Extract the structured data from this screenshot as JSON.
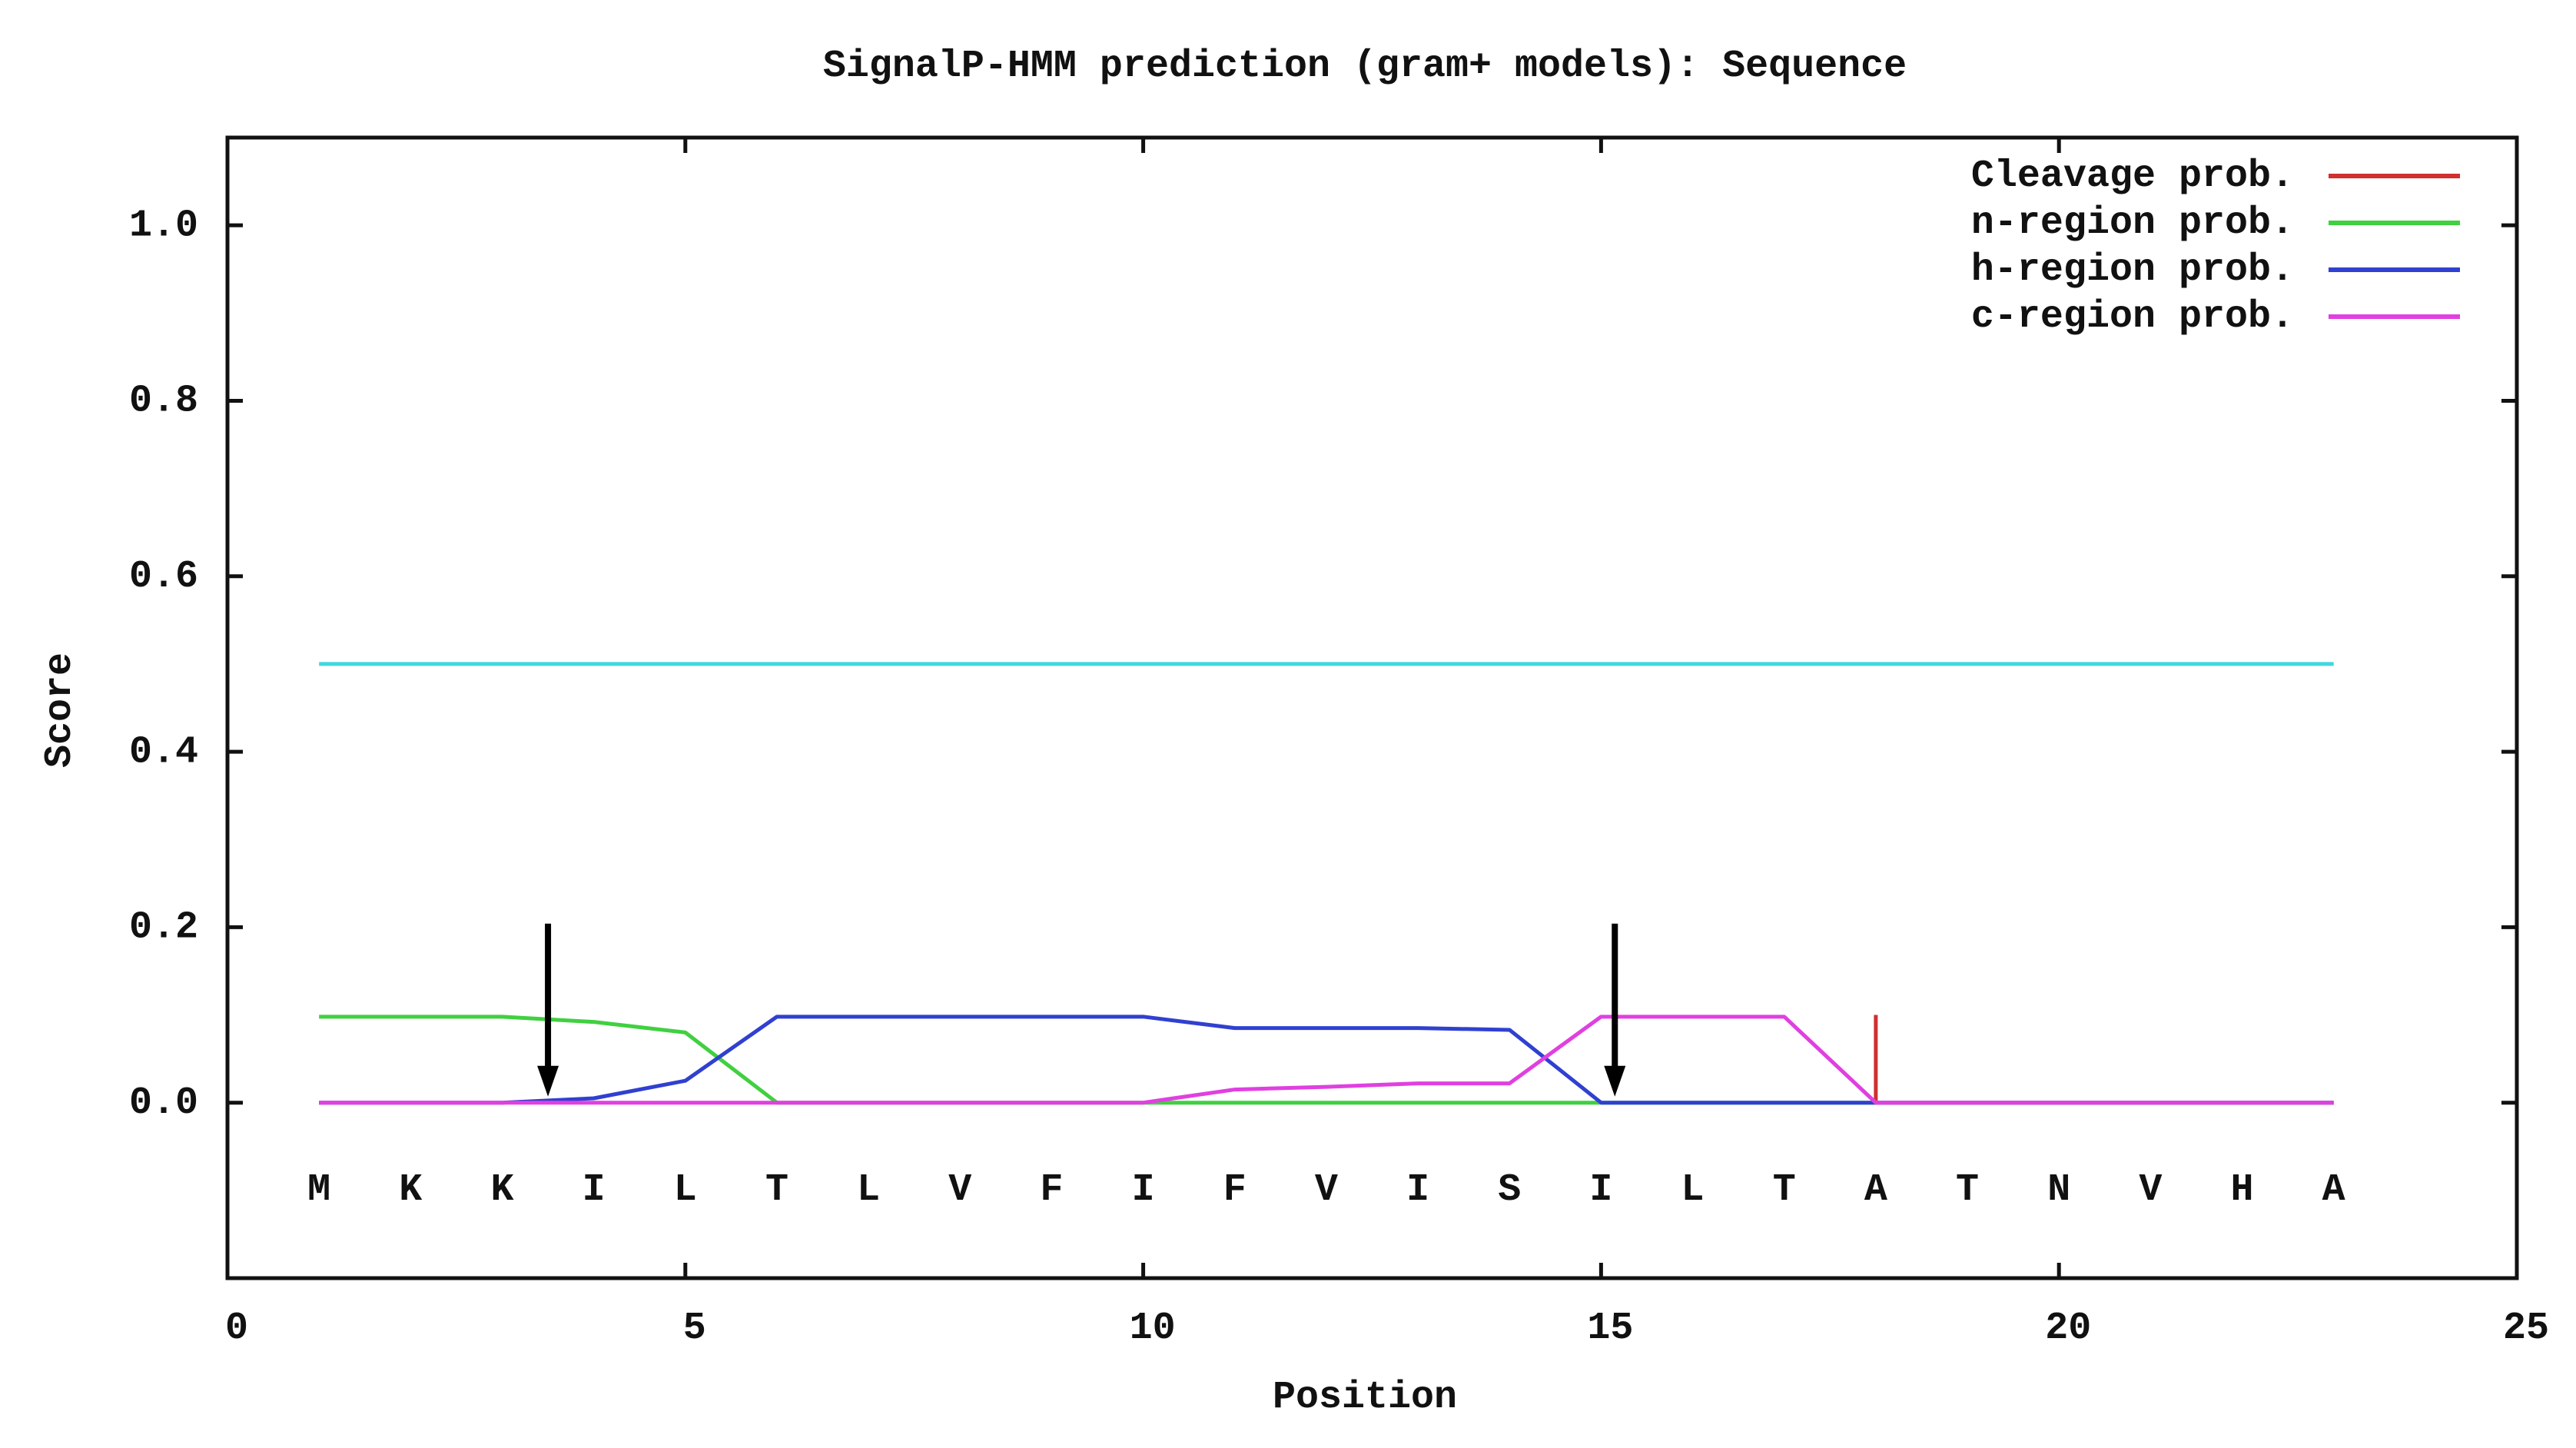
{
  "chart_data": {
    "type": "line",
    "title": "SignalP-HMM prediction (gram+ models): Sequence",
    "x_label": "Position",
    "y_label": "Score",
    "xlim": [
      0,
      25
    ],
    "xticks": [
      0,
      5,
      10,
      15,
      20,
      25
    ],
    "ylim": [
      -0.2,
      1.1
    ],
    "yticks": [
      {
        "value": 0,
        "label": "0.0"
      },
      0.2,
      0.4,
      0.6,
      0.8,
      {
        "value": 1,
        "label": "1.0"
      }
    ],
    "x": [
      1,
      2,
      3,
      4,
      5,
      6,
      7,
      8,
      9,
      10,
      11,
      12,
      13,
      14,
      15,
      16,
      17,
      18,
      19,
      20,
      21,
      22,
      23
    ],
    "sequence": [
      "M",
      "K",
      "K",
      "I",
      "L",
      "T",
      "L",
      "V",
      "F",
      "I",
      "F",
      "V",
      "I",
      "S",
      "I",
      "L",
      "T",
      "A",
      "T",
      "N",
      "V",
      "H",
      "A"
    ],
    "legend": "upper right",
    "series": [
      {
        "name": "Cleavage prob.",
        "color": "#d03030",
        "style": "impulses",
        "values": [
          0,
          0,
          0,
          0,
          0,
          0,
          0,
          0,
          0,
          0,
          0,
          0,
          0,
          0,
          0,
          0,
          0,
          0.1,
          0,
          0,
          0,
          0,
          0
        ]
      },
      {
        "name": "n-region prob.",
        "color": "#40d040",
        "style": "line",
        "values": [
          0.098,
          0.098,
          0.098,
          0.092,
          0.08,
          0,
          0,
          0,
          0,
          0,
          0,
          0,
          0,
          0,
          0,
          0,
          0,
          0,
          0,
          0,
          0,
          0,
          0
        ]
      },
      {
        "name": "h-region prob.",
        "color": "#3040d0",
        "style": "line",
        "values": [
          0,
          0,
          0,
          0.005,
          0.025,
          0.098,
          0.098,
          0.098,
          0.098,
          0.098,
          0.085,
          0.085,
          0.085,
          0.083,
          0,
          0,
          0,
          0,
          0,
          0,
          0,
          0,
          0
        ]
      },
      {
        "name": "c-region prob.",
        "color": "#e040e0",
        "style": "line",
        "values": [
          0,
          0,
          0,
          0,
          0,
          0,
          0,
          0,
          0,
          0,
          0.015,
          0.018,
          0.022,
          0.022,
          0.098,
          0.098,
          0.098,
          0,
          0,
          0,
          0,
          0,
          0
        ]
      }
    ],
    "threshold": {
      "value": 0.5,
      "color": "#40d8e0"
    },
    "arrows_x": [
      3.5,
      15.15
    ]
  }
}
